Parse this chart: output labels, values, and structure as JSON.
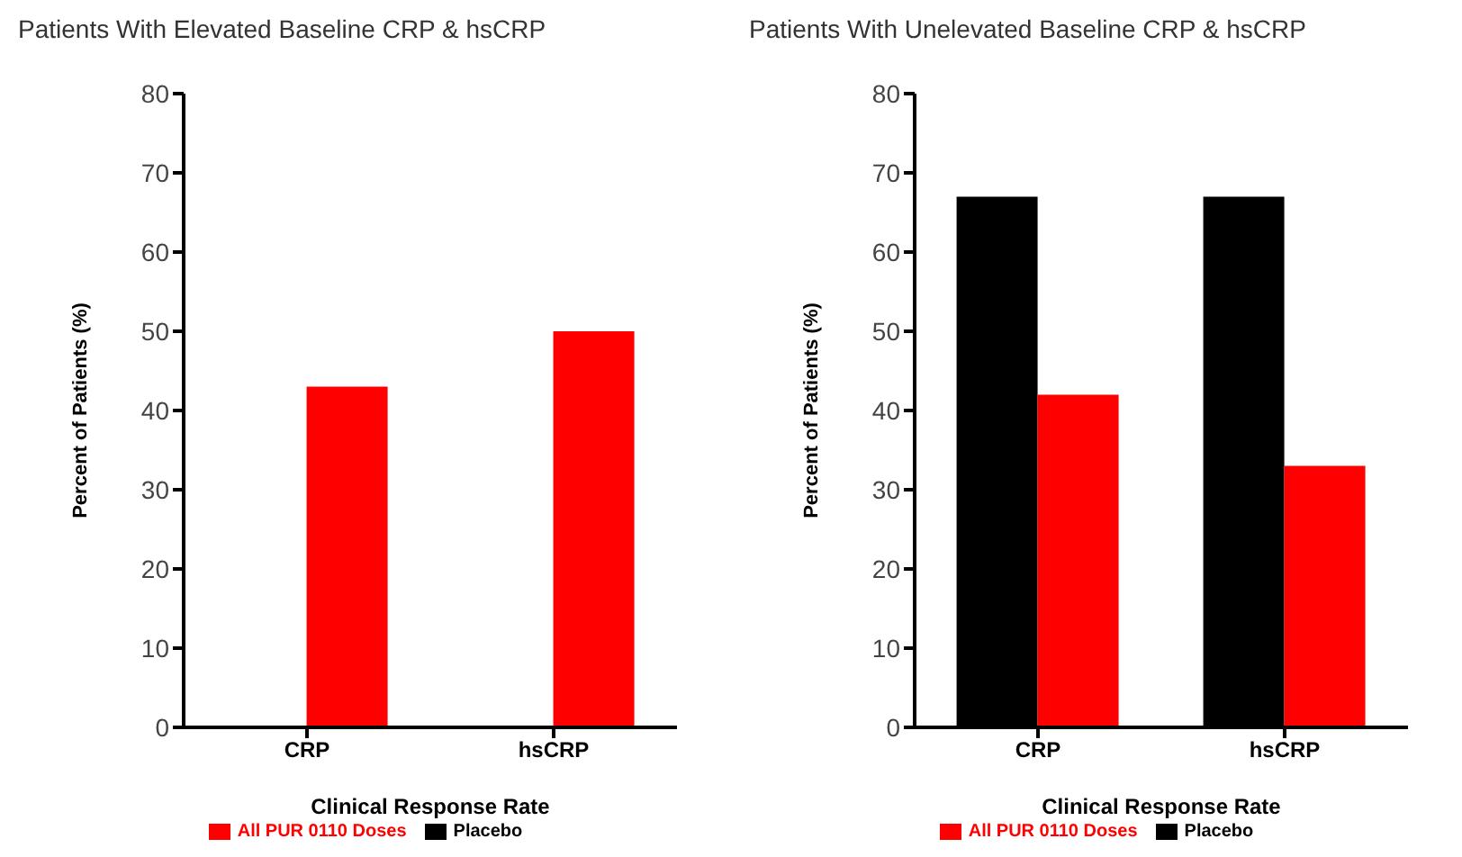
{
  "chart_data": [
    {
      "type": "bar",
      "title": "Patients With Elevated Baseline CRP & hsCRP",
      "xlabel": "Clinical Response Rate",
      "ylabel": "Percent of Patients (%)",
      "categories": [
        "CRP",
        "hsCRP"
      ],
      "series": [
        {
          "name": "Placebo",
          "color": "#000000",
          "values": [
            0,
            0
          ]
        },
        {
          "name": "All PUR 0110 Doses",
          "color": "#ff0000",
          "values": [
            43,
            50
          ]
        }
      ],
      "ylim": [
        0,
        80
      ],
      "yticks": [
        0,
        10,
        20,
        30,
        40,
        50,
        60,
        70,
        80
      ],
      "grid": false,
      "legend": "bottom"
    },
    {
      "type": "bar",
      "title": "Patients With Unelevated Baseline CRP & hsCRP",
      "xlabel": "Clinical Response Rate",
      "ylabel": "Percent of Patients (%)",
      "categories": [
        "CRP",
        "hsCRP"
      ],
      "series": [
        {
          "name": "Placebo",
          "color": "#000000",
          "values": [
            67,
            67
          ]
        },
        {
          "name": "All PUR 0110 Doses",
          "color": "#ff0000",
          "values": [
            42,
            33
          ]
        }
      ],
      "ylim": [
        0,
        80
      ],
      "yticks": [
        0,
        10,
        20,
        30,
        40,
        50,
        60,
        70,
        80
      ],
      "grid": false,
      "legend": "bottom"
    }
  ]
}
